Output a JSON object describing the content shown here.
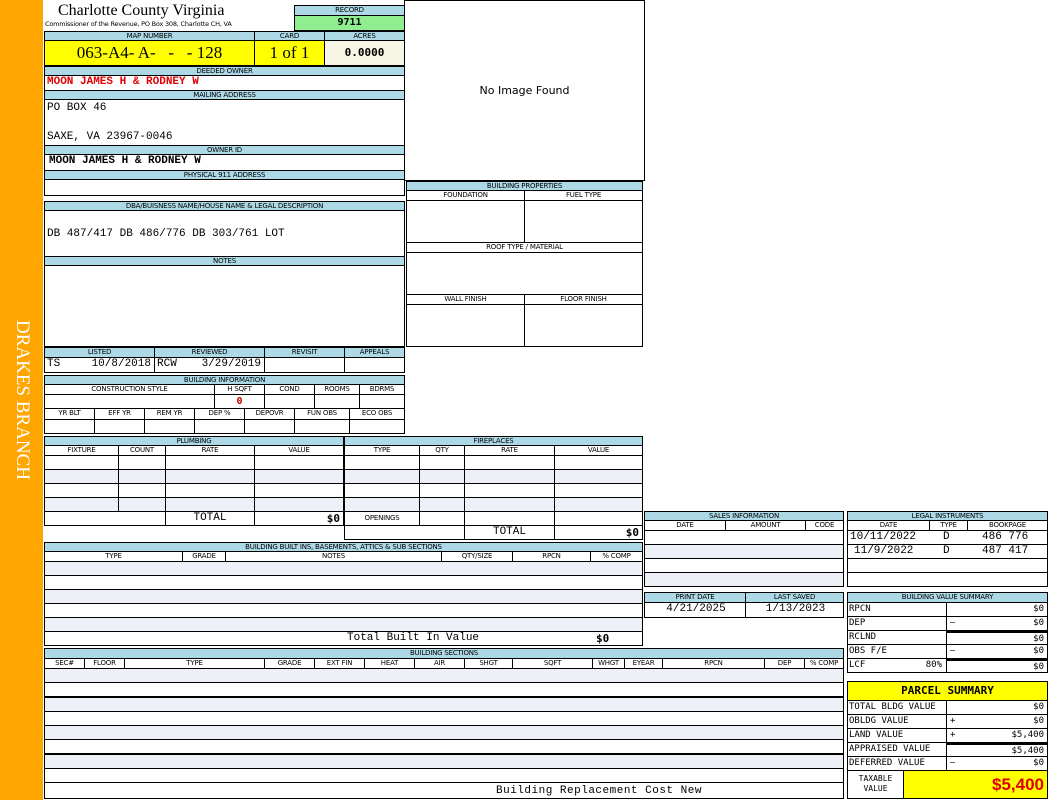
{
  "district": "DRAKES BRANCH",
  "header": {
    "title": "Charlotte County Virginia",
    "subtitle": "Commissioner of the Revenue, PO Box 308, Charlotte CH, VA",
    "record_label": "RECORD",
    "record": "9711"
  },
  "parcel": {
    "map_label": "MAP NUMBER",
    "map": "063-A4- A-   -   - 128",
    "card_label": "CARD",
    "card": "1 of 1",
    "acres_label": "ACRES",
    "acres": "0.0000"
  },
  "owner": {
    "deeded_label": "DEEDED OWNER",
    "deeded": "MOON JAMES H & RODNEY W",
    "mailing_label": "MAILING ADDRESS",
    "mail1": "PO BOX 46",
    "mail2": "SAXE, VA 23967-0046",
    "owner_id_label": "OWNER ID",
    "owner_id": "MOON JAMES H & RODNEY W",
    "physical_label": "PHYSICAL 911 ADDRESS",
    "physical": ""
  },
  "image": {
    "text": "No Image Found"
  },
  "dba": {
    "label": "DBA/BUISNESS NAME/HOUSE NAME & LEGAL DESCRIPTION",
    "value": "DB 487/417 DB 486/776 DB 303/761 LOT"
  },
  "notes": {
    "label": "NOTES"
  },
  "props": {
    "label": "BUILDING PROPERTIES",
    "foundation": "FOUNDATION",
    "fuel": "FUEL TYPE",
    "roof": "ROOF TYPE / MATERIAL",
    "wall": "WALL FINISH",
    "floor": "FLOOR FINISH"
  },
  "review": {
    "listed_label": "LISTED",
    "listed_by": "TS",
    "listed_date": "10/8/2018",
    "reviewed_label": "REVIEWED",
    "reviewed_by": "RCW",
    "reviewed_date": "3/29/2019",
    "revisit_label": "REVISIT",
    "appeals_label": "APPEALS"
  },
  "bldg_info": {
    "label": "BUILDING INFORMATION",
    "style": "CONSTRUCTION STYLE",
    "hsqft": "H SQFT",
    "hsqft_value": "0",
    "cond": "COND",
    "rooms": "ROOMS",
    "bdrms": "BDRMS",
    "yrblt": "YR BLT",
    "effyr": "EFF YR",
    "remyr": "REM YR",
    "dep": "DEP %",
    "depovr": "DEPOVR",
    "funobs": "FUN OBS",
    "ecoobs": "ECO OBS"
  },
  "plumbing": {
    "label": "PLUMBING",
    "cols": [
      "FIXTURE",
      "COUNT",
      "RATE",
      "VALUE"
    ],
    "total_label": "TOTAL",
    "total": "$0"
  },
  "fireplaces": {
    "label": "FIREPLACES",
    "cols": [
      "TYPE",
      "QTY",
      "RATE",
      "VALUE"
    ],
    "openings": "OPENINGS",
    "total_label": "TOTAL",
    "total": "$0"
  },
  "builtins": {
    "label": "BUILDING BUILT INS, BASEMENTS, ATTICS & SUB SECTIONS",
    "cols": [
      "TYPE",
      "GRADE",
      "NOTES",
      "QTY/SIZE",
      "RPCN",
      "% COMP"
    ],
    "total_label": "Total Built In Value",
    "total": "$0"
  },
  "sections": {
    "label": "BUILDING SECTIONS",
    "cols": [
      "SEC#",
      "FLOOR",
      "TYPE",
      "GRADE",
      "EXT FIN",
      "HEAT",
      "AIR",
      "SHGT",
      "SQFT",
      "WHGT",
      "EYEAR",
      "RPCN",
      "DEP",
      "% COMP"
    ],
    "footer": "Building Replacement Cost New"
  },
  "sales": {
    "label": "SALES INFORMATION",
    "cols": [
      "DATE",
      "AMOUNT",
      "CODE"
    ]
  },
  "legal": {
    "label": "LEGAL INSTRUMENTS",
    "cols": [
      "DATE",
      "TYPE",
      "BOOKPAGE"
    ],
    "rows": [
      {
        "date": "10/11/2022",
        "type": "D",
        "bookpage": "486 776"
      },
      {
        "date": "11/9/2022",
        "type": "D",
        "bookpage": "487 417"
      }
    ]
  },
  "dates": {
    "print_label": "PRINT DATE",
    "print": "4/21/2025",
    "saved_label": "LAST SAVED",
    "saved": "1/13/2023"
  },
  "bvs": {
    "label": "BUILDING VALUE SUMMARY",
    "rows": [
      {
        "k": "RPCN",
        "op": "",
        "v": "$0"
      },
      {
        "k": "DEP",
        "op": "–",
        "v": "$0"
      },
      {
        "k": "RCLND",
        "op": "",
        "v": "$0"
      },
      {
        "k": "OBS F/E",
        "op": "–",
        "v": "$0"
      },
      {
        "k": "LCF",
        "pct": "80%",
        "op": "",
        "v": "$0"
      }
    ]
  },
  "summary": {
    "label": "PARCEL SUMMARY",
    "rows": [
      {
        "k": "TOTAL BLDG VALUE",
        "op": "",
        "v": "$0"
      },
      {
        "k": "OBLDG VALUE",
        "op": "+",
        "v": "$0"
      },
      {
        "k": "LAND VALUE",
        "op": "+",
        "v": "$5,400"
      },
      {
        "k": "APPRAISED VALUE",
        "op": "",
        "v": "$5,400"
      },
      {
        "k": "DEFERRED VALUE",
        "op": "–",
        "v": "$0"
      }
    ],
    "taxable_label": "TAXABLE VALUE",
    "taxable": "$5,400"
  },
  "colors": {
    "sidebar": "#ffa500",
    "header": "#add8e6",
    "highlight": "#ffff00",
    "record": "#90ee90",
    "alert": "#e00000"
  }
}
